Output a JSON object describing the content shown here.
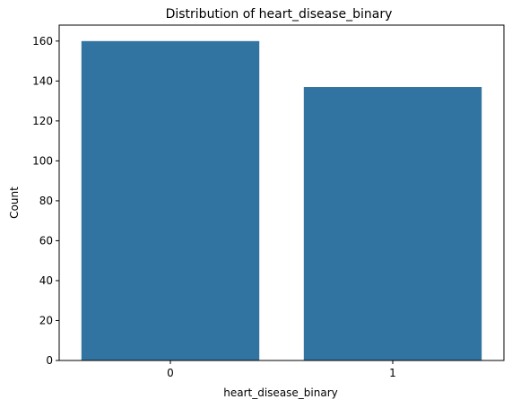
{
  "chart_data": {
    "type": "bar",
    "title": "Distribution of heart_disease_binary",
    "xlabel": "heart_disease_binary",
    "ylabel": "Count",
    "categories": [
      "0",
      "1"
    ],
    "values": [
      160,
      137
    ],
    "ylim": [
      0,
      168
    ],
    "yticks": [
      0,
      20,
      40,
      60,
      80,
      100,
      120,
      140,
      160
    ],
    "grid": false,
    "legend": "none",
    "bar_color": "#3274a1"
  }
}
